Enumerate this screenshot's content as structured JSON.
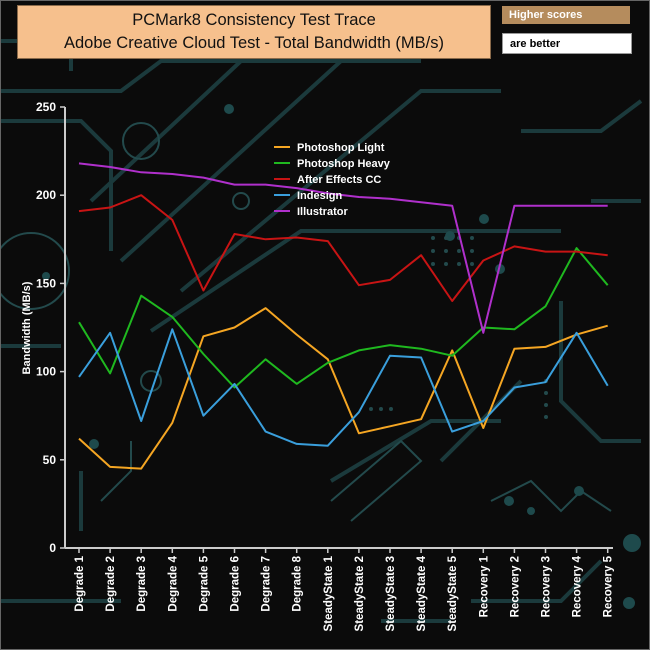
{
  "header": {
    "title_line1": "PCMark8 Consistency Test Trace",
    "title_line2": "Adobe Creative Cloud Test - Total Bandwidth (MB/s)",
    "note_line1": "Higher scores",
    "note_line2": "are better"
  },
  "colors": {
    "background": "#0b0b0b",
    "circuit": "#1b3a3c",
    "axis": "#cccccc",
    "title_bg": "#f6c08d",
    "note_bg": "#b58c5d"
  },
  "chart_data": {
    "type": "line",
    "title": "PCMark8 Consistency Test Trace Adobe Creative Cloud Test - Total Bandwidth (MB/s)",
    "xlabel": "",
    "ylabel": "Bandwidth (MB/s)",
    "ylim": [
      0,
      250
    ],
    "yticks": [
      0,
      50,
      100,
      150,
      200,
      250
    ],
    "grid": false,
    "legend_position": "top-center",
    "categories": [
      "Degrade 1",
      "Degrade 2",
      "Degrade 3",
      "Degrade 4",
      "Degrade 5",
      "Degrade 6",
      "Degrade 7",
      "Degrade 8",
      "SteadyState 1",
      "SteadyState 2",
      "SteadyState 3",
      "SteadyState 4",
      "SteadyState 5",
      "Recovery 1",
      "Recovery 2",
      "Recovery 3",
      "Recovery 4",
      "Recovery 5"
    ],
    "series": [
      {
        "name": "Photoshop Light",
        "color": "#f5a623",
        "values": [
          62,
          46,
          45,
          71,
          120,
          125,
          136,
          121,
          107,
          65,
          69,
          73,
          112,
          68,
          113,
          114,
          121,
          126
        ]
      },
      {
        "name": " Photoshop Heavy",
        "color": "#1fb81f",
        "values": [
          128,
          99,
          143,
          131,
          110,
          91,
          107,
          93,
          105,
          112,
          115,
          113,
          109,
          125,
          124,
          137,
          170,
          149
        ]
      },
      {
        "name": "After Effects CC",
        "color": "#c81414",
        "values": [
          191,
          193,
          200,
          186,
          146,
          178,
          175,
          176,
          174,
          149,
          152,
          166,
          140,
          163,
          171,
          168,
          168,
          166
        ]
      },
      {
        "name": "Indesign",
        "color": "#3a9fdc",
        "values": [
          97,
          122,
          72,
          124,
          75,
          93,
          66,
          59,
          58,
          77,
          109,
          108,
          66,
          72,
          91,
          94,
          122,
          92
        ]
      },
      {
        "name": "Illustrator",
        "color": "#b030cc",
        "values": [
          218,
          216,
          213,
          212,
          210,
          206,
          206,
          204,
          201,
          199,
          198,
          196,
          194,
          122,
          194,
          194,
          194,
          194
        ]
      }
    ]
  }
}
